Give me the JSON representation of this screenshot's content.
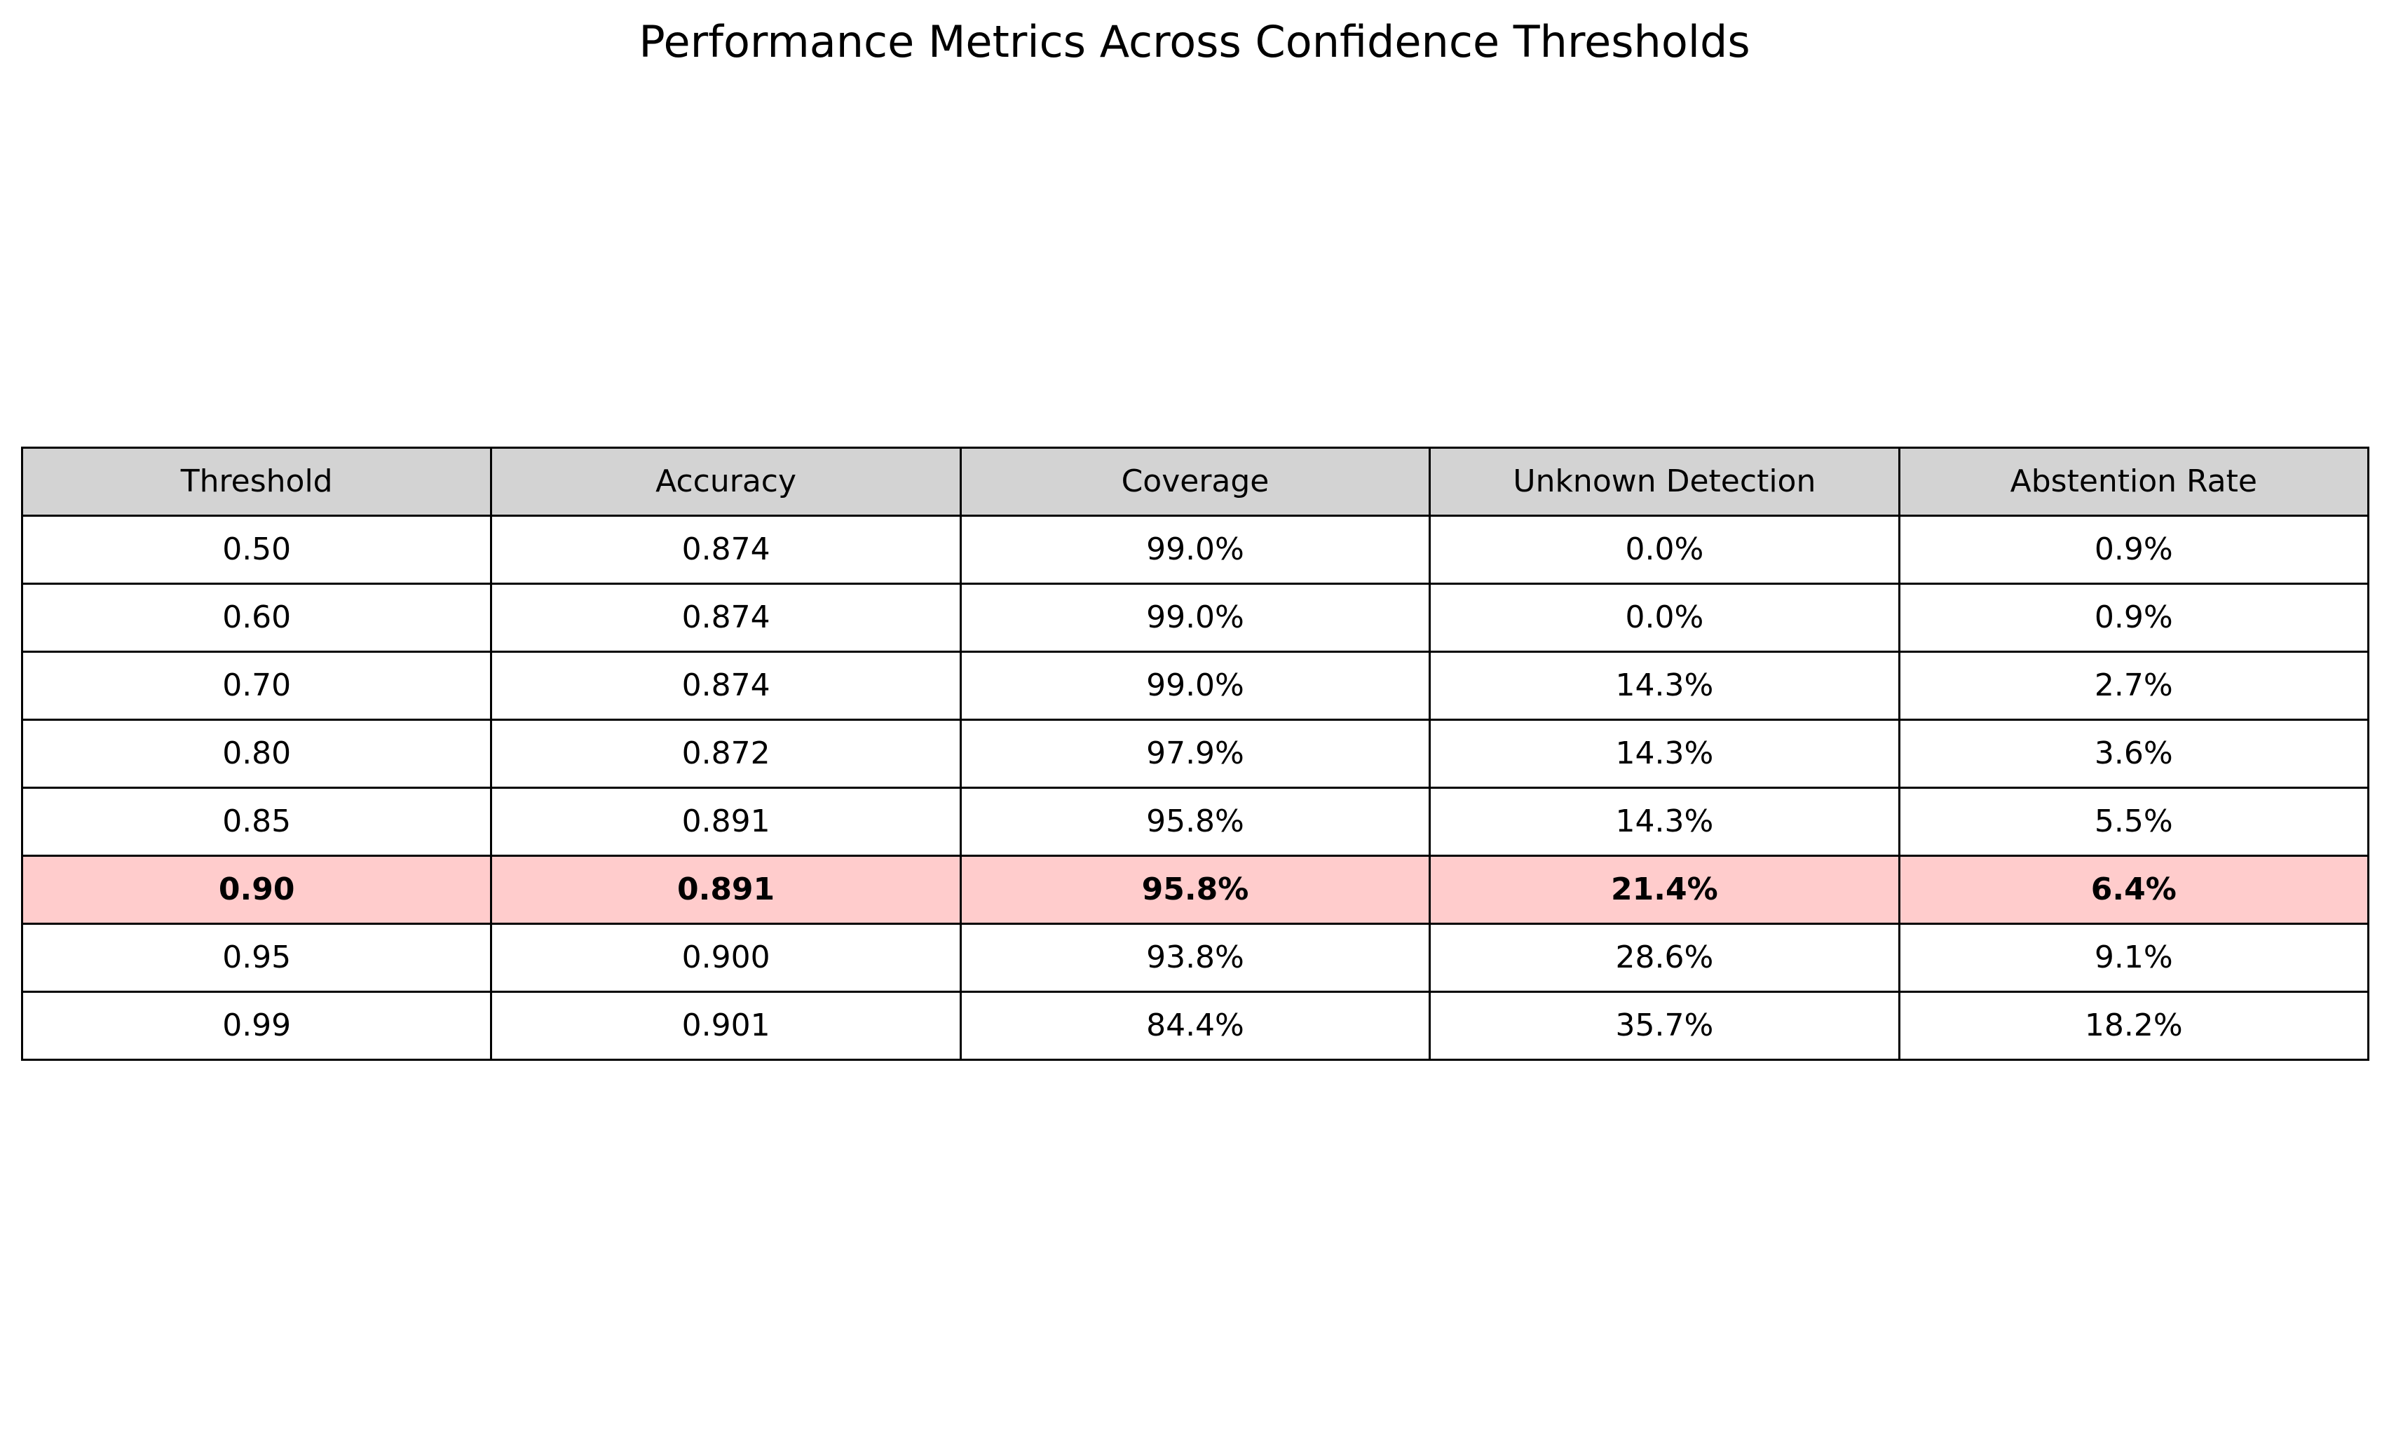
{
  "chart_data": {
    "type": "table",
    "title": "Performance Metrics Across Confidence Thresholds",
    "columns": [
      "Threshold",
      "Accuracy",
      "Coverage",
      "Unknown Detection",
      "Abstention Rate"
    ],
    "rows": [
      [
        "0.50",
        "0.874",
        "99.0%",
        "0.0%",
        "0.9%"
      ],
      [
        "0.60",
        "0.874",
        "99.0%",
        "0.0%",
        "0.9%"
      ],
      [
        "0.70",
        "0.874",
        "99.0%",
        "14.3%",
        "2.7%"
      ],
      [
        "0.80",
        "0.872",
        "97.9%",
        "14.3%",
        "3.6%"
      ],
      [
        "0.85",
        "0.891",
        "95.8%",
        "14.3%",
        "5.5%"
      ],
      [
        "0.90",
        "0.891",
        "95.8%",
        "21.4%",
        "6.4%"
      ],
      [
        "0.95",
        "0.900",
        "93.8%",
        "28.6%",
        "9.1%"
      ],
      [
        "0.99",
        "0.901",
        "84.4%",
        "35.7%",
        "18.2%"
      ]
    ],
    "highlighted_row": "0.90",
    "colors": {
      "header_background": "#d3d3d3",
      "highlight_background": "#ffcccc",
      "cell_background": "#ffffff",
      "border": "#000000"
    }
  }
}
